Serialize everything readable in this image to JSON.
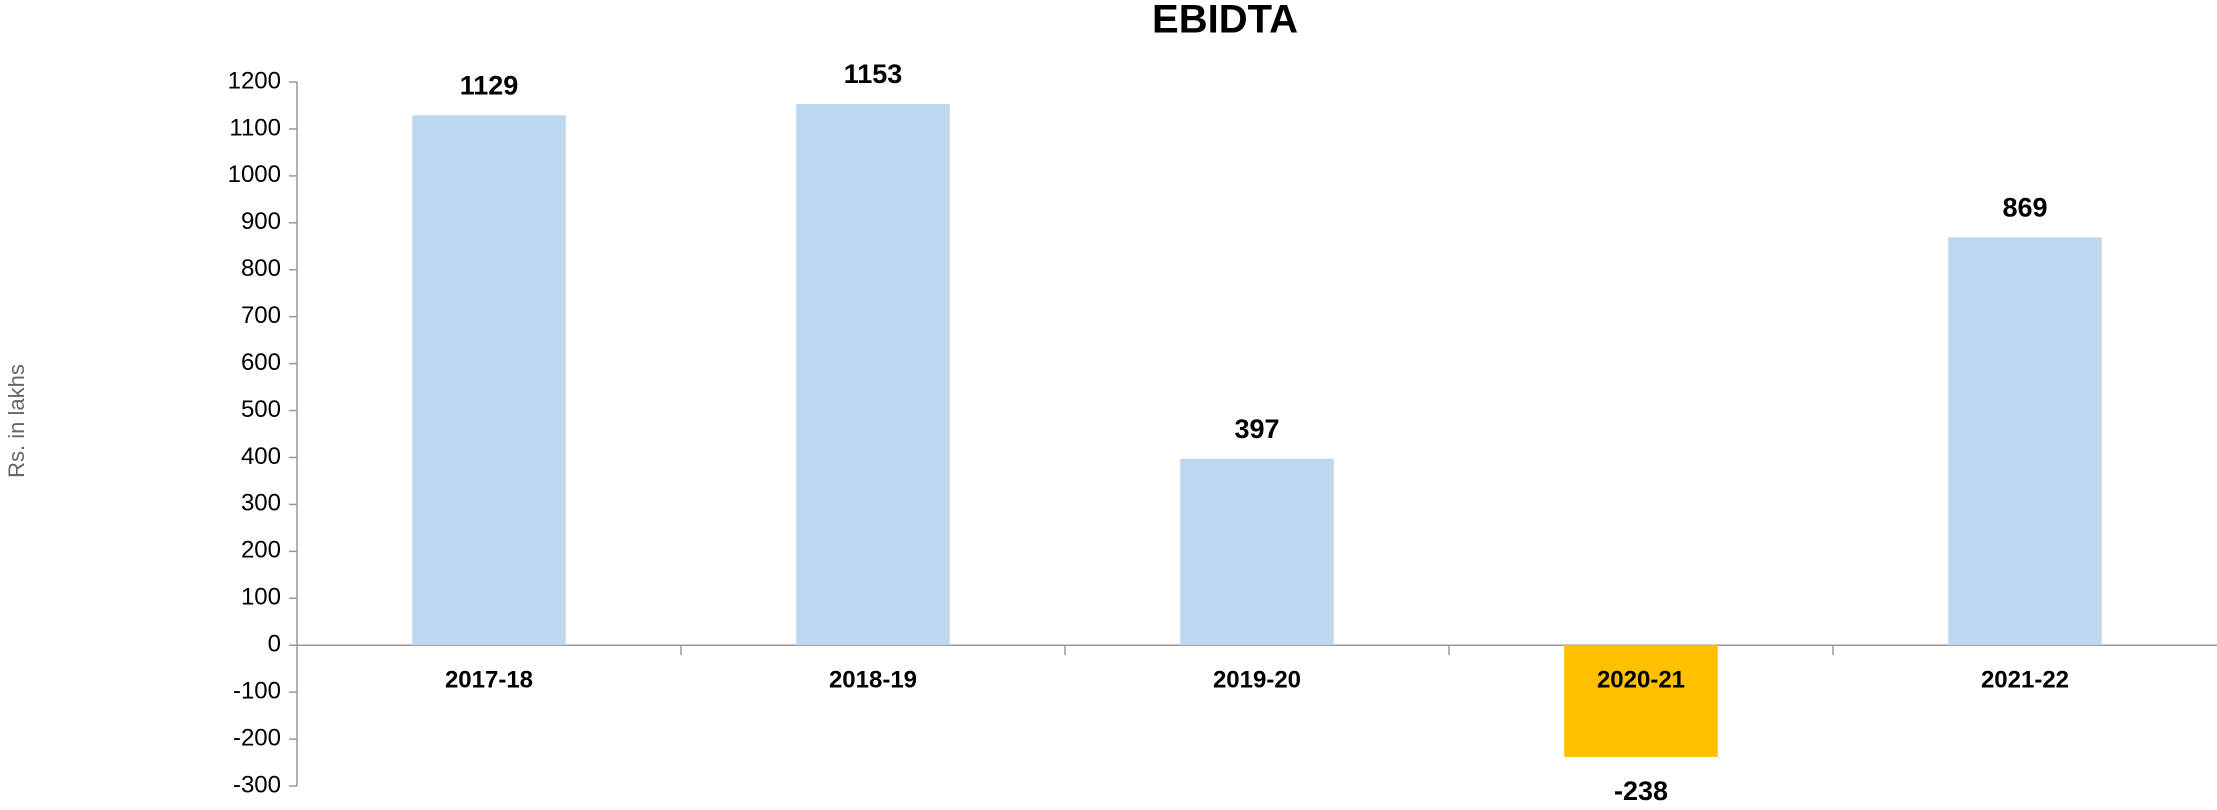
{
  "chart_data": {
    "type": "bar",
    "title": "EBIDTA",
    "y_label": "Rs. in lakhs",
    "categories": [
      "2017-18",
      "2018-19",
      "2019-20",
      "2020-21",
      "2021-22"
    ],
    "values": [
      1129,
      1153,
      397,
      -238,
      869
    ],
    "colors": [
      "#bdd7ee",
      "#bdd7ee",
      "#bdd7ee",
      "#ffc000",
      "#bdd7ee"
    ],
    "ylim": [
      -300,
      1200
    ],
    "yticks": [
      -300,
      -200,
      -100,
      0,
      100,
      200,
      300,
      400,
      500,
      600,
      700,
      800,
      900,
      1000,
      1100,
      1200
    ],
    "grid": false
  }
}
